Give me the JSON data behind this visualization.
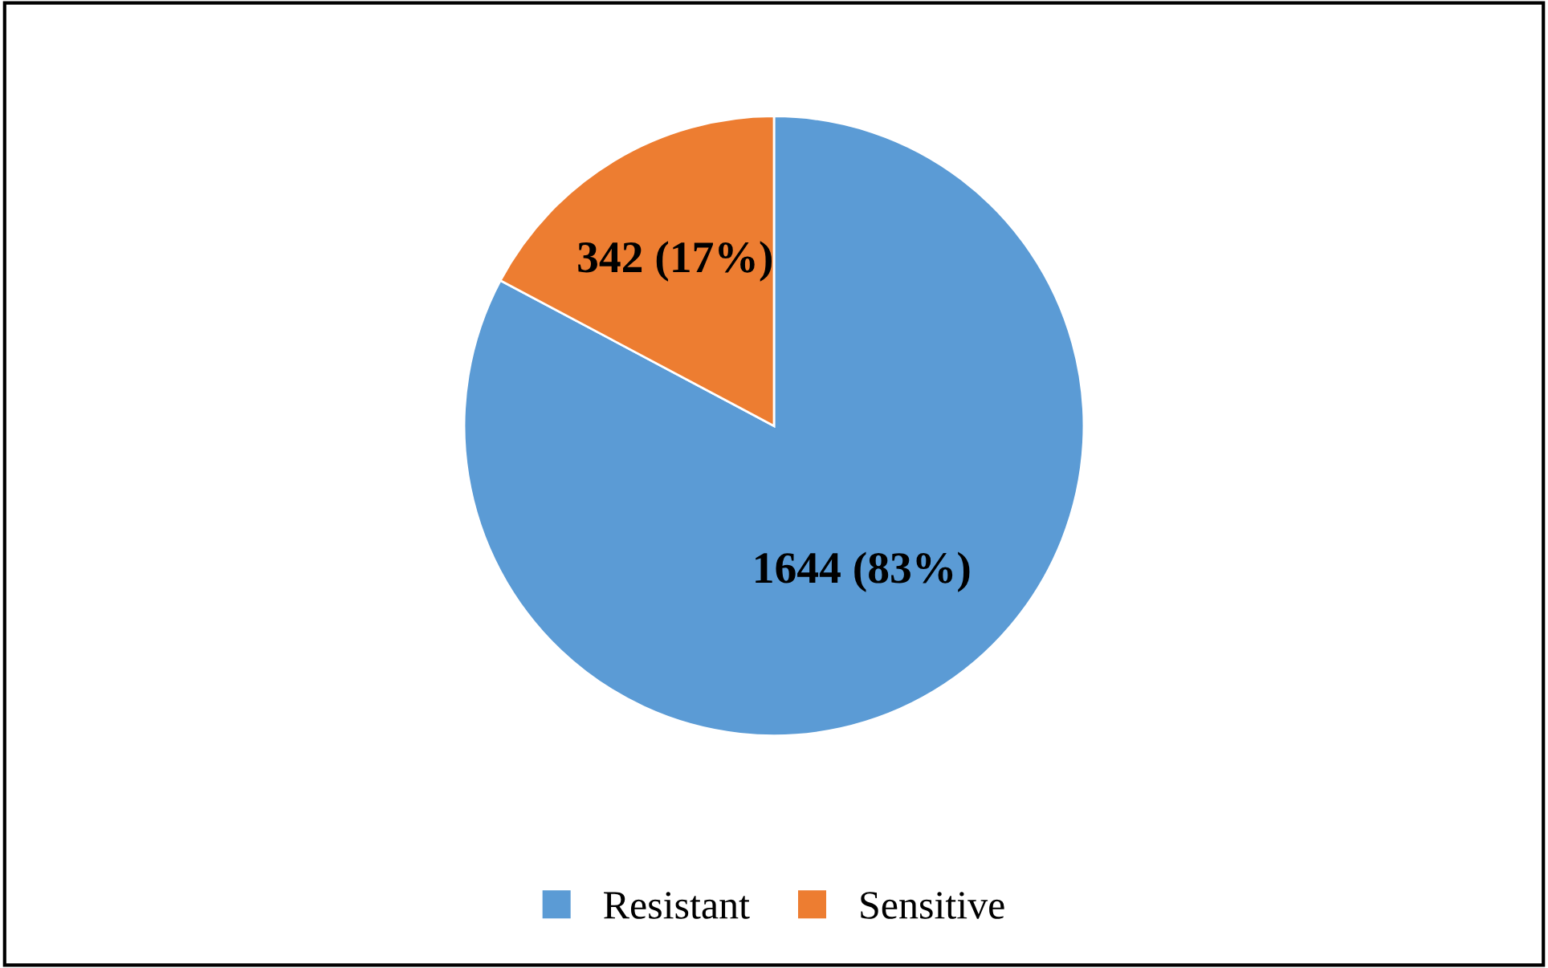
{
  "chart_data": {
    "type": "pie",
    "categories": [
      "Resistant",
      "Sensitive"
    ],
    "values": [
      1644,
      342
    ],
    "colors": [
      "#5b9bd5",
      "#ed7d31"
    ],
    "value_labels": [
      "1644 (83%)",
      "342 (17%)"
    ],
    "legend": "bottom"
  }
}
